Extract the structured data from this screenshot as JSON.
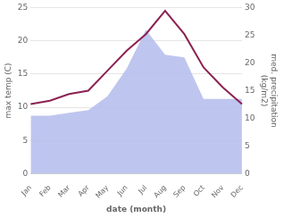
{
  "chart_data": {
    "type": "line",
    "xlabel": "date (month)",
    "ylabel": "max temp (C)",
    "y2label": "med. precipitation\n(kg/m2)",
    "categories": [
      "Jan",
      "Feb",
      "Mar",
      "Apr",
      "May",
      "Jun",
      "Jul",
      "Aug",
      "Sep",
      "Oct",
      "Nov",
      "Dec"
    ],
    "series": [
      {
        "type": "area",
        "axis": "y2",
        "color": "#b3bcec",
        "values": [
          10.5,
          10.5,
          11.0,
          11.5,
          14.0,
          19.0,
          26.0,
          21.5,
          21.0,
          13.5,
          13.5,
          13.5
        ]
      },
      {
        "type": "line",
        "color": "#8b2252",
        "values": [
          10.5,
          11.0,
          12.0,
          12.5,
          15.5,
          18.5,
          21.0,
          24.5,
          21.0,
          16.0,
          13.0,
          10.5
        ]
      }
    ],
    "ylim": [
      0,
      25
    ],
    "yticks": [
      0,
      5,
      10,
      15,
      20,
      25
    ],
    "y2lim": [
      0,
      30
    ],
    "y2ticks": [
      0,
      5,
      10,
      15,
      20,
      25,
      30
    ],
    "grid": true
  }
}
